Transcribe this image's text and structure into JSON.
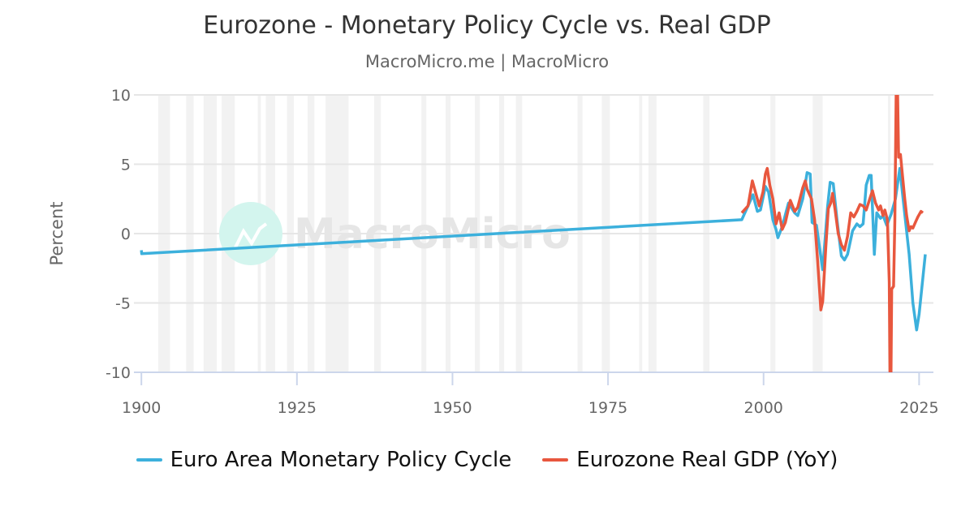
{
  "chart_data": {
    "type": "line",
    "title": "Eurozone - Monetary Policy Cycle vs. Real GDP",
    "subtitle": "MacroMicro.me | MacroMicro",
    "watermark": "MacroMicro",
    "xlabel": "",
    "ylabel": "Percent",
    "xlim": [
      1898.8,
      2027.3
    ],
    "ylim": [
      -10,
      10
    ],
    "xticks": [
      "1900",
      "1925",
      "1950",
      "1975",
      "2000",
      "2025"
    ],
    "yticks": [
      "10",
      "5",
      "0",
      "-5",
      "-10"
    ],
    "grid": "horizontal",
    "legend_position": "bottom",
    "recession_bands": [
      [
        1902.7,
        1904.6
      ],
      [
        1907.2,
        1908.4
      ],
      [
        1910.0,
        1912.1
      ],
      [
        1912.9,
        1915.0
      ],
      [
        1918.7,
        1919.2
      ],
      [
        1920.0,
        1921.5
      ],
      [
        1923.4,
        1924.5
      ],
      [
        1926.7,
        1927.8
      ],
      [
        1929.6,
        1933.3
      ],
      [
        1937.4,
        1938.5
      ],
      [
        1945.0,
        1945.8
      ],
      [
        1948.9,
        1949.7
      ],
      [
        1953.6,
        1954.4
      ],
      [
        1957.5,
        1958.3
      ],
      [
        1960.2,
        1961.2
      ],
      [
        1970.1,
        1970.9
      ],
      [
        1974.0,
        1975.3
      ],
      [
        1980.0,
        1980.5
      ],
      [
        1981.5,
        1982.8
      ],
      [
        1990.3,
        1991.3
      ],
      [
        2001.1,
        2001.9
      ],
      [
        2007.9,
        2009.5
      ],
      [
        2020.0,
        2020.4
      ]
    ],
    "series": [
      {
        "name": "Euro Area Monetary Policy Cycle",
        "color": "#3cb0dc",
        "points": [
          [
            1900,
            -1.2
          ],
          [
            1900.05,
            -1.45
          ],
          [
            1996.5,
            1.0
          ],
          [
            1997.5,
            2.0
          ],
          [
            1998.3,
            2.8
          ],
          [
            1999,
            1.6
          ],
          [
            1999.5,
            1.7
          ],
          [
            2000.3,
            3.4
          ],
          [
            2000.8,
            3.0
          ],
          [
            2001.5,
            1.0
          ],
          [
            2002,
            0.3
          ],
          [
            2002.3,
            -0.3
          ],
          [
            2003,
            0.5
          ],
          [
            2004,
            2.2
          ],
          [
            2005,
            1.5
          ],
          [
            2005.5,
            1.3
          ],
          [
            2006.3,
            2.5
          ],
          [
            2007,
            4.4
          ],
          [
            2007.5,
            4.3
          ],
          [
            2007.8,
            0.8
          ],
          [
            2008.5,
            0.6
          ],
          [
            2009,
            -1.0
          ],
          [
            2009.5,
            -2.6
          ],
          [
            2010.3,
            2.0
          ],
          [
            2010.7,
            3.7
          ],
          [
            2011.2,
            3.6
          ],
          [
            2011.8,
            1.0
          ],
          [
            2012.5,
            -1.6
          ],
          [
            2013,
            -1.9
          ],
          [
            2013.5,
            -1.5
          ],
          [
            2014.3,
            0.2
          ],
          [
            2015,
            0.7
          ],
          [
            2015.5,
            0.5
          ],
          [
            2016,
            0.7
          ],
          [
            2016.5,
            3.5
          ],
          [
            2017,
            4.2
          ],
          [
            2017.3,
            4.2
          ],
          [
            2017.8,
            -1.5
          ],
          [
            2018.2,
            1.5
          ],
          [
            2018.8,
            1.1
          ],
          [
            2019.2,
            1.3
          ],
          [
            2019.8,
            0.6
          ],
          [
            2020.5,
            1.4
          ],
          [
            2021.2,
            2.5
          ],
          [
            2021.9,
            4.7
          ],
          [
            2022.5,
            2.2
          ],
          [
            2023.4,
            -1.5
          ],
          [
            2024,
            -5.0
          ],
          [
            2024.6,
            -6.95
          ],
          [
            2025,
            -5.8
          ],
          [
            2026.0,
            -1.5
          ]
        ]
      },
      {
        "name": "Eurozone Real GDP (YoY)",
        "color": "#e8573e",
        "points": [
          [
            1996.5,
            1.5
          ],
          [
            1997.5,
            2.0
          ],
          [
            1998.2,
            3.8
          ],
          [
            1999,
            2.5
          ],
          [
            1999.3,
            2.0
          ],
          [
            1999.9,
            3.0
          ],
          [
            2000.3,
            4.3
          ],
          [
            2000.6,
            4.7
          ],
          [
            2001,
            3.5
          ],
          [
            2001.5,
            2.5
          ],
          [
            2002,
            0.7
          ],
          [
            2002.5,
            1.5
          ],
          [
            2003,
            0.3
          ],
          [
            2003.5,
            0.8
          ],
          [
            2004.3,
            2.4
          ],
          [
            2005,
            1.6
          ],
          [
            2005.5,
            1.9
          ],
          [
            2006.3,
            3.3
          ],
          [
            2006.7,
            3.8
          ],
          [
            2007,
            3.2
          ],
          [
            2007.7,
            2.5
          ],
          [
            2008.2,
            1.0
          ],
          [
            2008.7,
            -2.0
          ],
          [
            2009.2,
            -5.5
          ],
          [
            2009.5,
            -4.9
          ],
          [
            2010,
            -1.0
          ],
          [
            2010.4,
            1.8
          ],
          [
            2010.8,
            2.2
          ],
          [
            2011.1,
            2.9
          ],
          [
            2011.5,
            1.7
          ],
          [
            2012,
            0.0
          ],
          [
            2012.5,
            -0.8
          ],
          [
            2013,
            -1.2
          ],
          [
            2013.5,
            -0.2
          ],
          [
            2014,
            1.5
          ],
          [
            2014.5,
            1.2
          ],
          [
            2015,
            1.6
          ],
          [
            2015.5,
            2.1
          ],
          [
            2016,
            2.0
          ],
          [
            2016.5,
            1.7
          ],
          [
            2017,
            2.4
          ],
          [
            2017.5,
            3.1
          ],
          [
            2018,
            2.2
          ],
          [
            2018.5,
            1.7
          ],
          [
            2018.8,
            2.0
          ],
          [
            2019.2,
            1.3
          ],
          [
            2019.5,
            1.7
          ],
          [
            2019.9,
            1.0
          ],
          [
            2020.2,
            -3.5
          ],
          [
            2020.4,
            -14.7
          ],
          [
            2020.6,
            -4.0
          ],
          [
            2020.9,
            -3.8
          ],
          [
            2021.1,
            1.0
          ],
          [
            2021.4,
            14.2
          ],
          [
            2021.7,
            5.5
          ],
          [
            2022,
            5.7
          ],
          [
            2022.3,
            4.3
          ],
          [
            2022.7,
            2.5
          ],
          [
            2023,
            1.3
          ],
          [
            2023.4,
            0.2
          ],
          [
            2023.7,
            0.5
          ],
          [
            2024,
            0.4
          ],
          [
            2024.5,
            0.9
          ],
          [
            2024.8,
            1.2
          ],
          [
            2025.3,
            1.6
          ],
          [
            2025.6,
            1.5
          ]
        ]
      }
    ]
  }
}
